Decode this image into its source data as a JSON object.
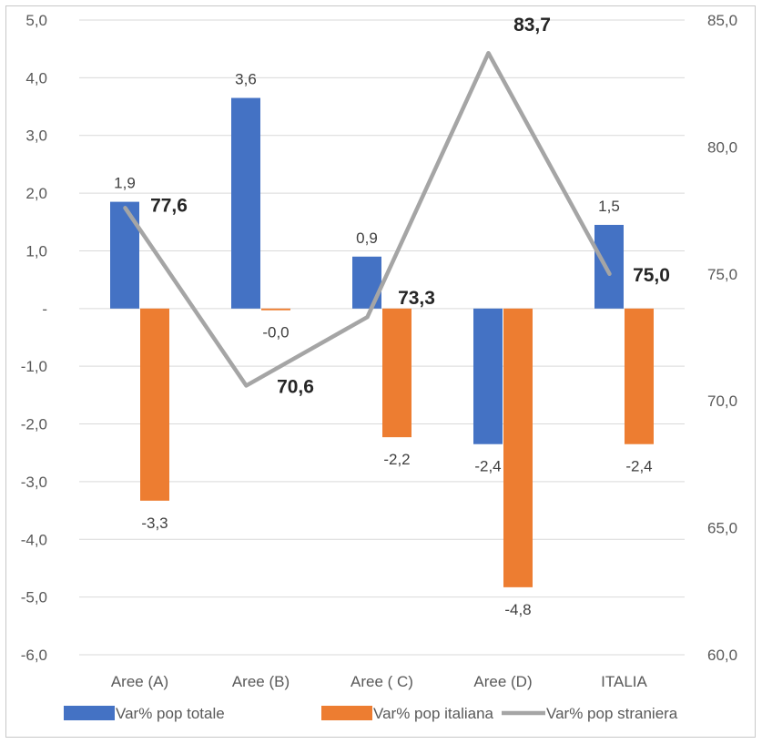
{
  "chart_data": {
    "type": "bar",
    "categories": [
      "Aree (A)",
      "Aree (B)",
      "Aree ( C)",
      "Aree (D)",
      "ITALIA"
    ],
    "series": [
      {
        "name": "Var% pop totale",
        "type": "bar",
        "axis": "left",
        "color": "#4472C4",
        "values": [
          1.85,
          3.65,
          0.9,
          -2.35,
          1.45
        ],
        "labels": [
          "1,9",
          "3,6",
          "0,9",
          "-2,4",
          "1,5"
        ]
      },
      {
        "name": "Var% pop italiana",
        "type": "bar",
        "axis": "left",
        "color": "#ED7D31",
        "values": [
          -3.33,
          -0.03,
          -2.23,
          -4.83,
          -2.35
        ],
        "labels": [
          "-3,3",
          "-0,0",
          "-2,2",
          "-4,8",
          "-2,4"
        ]
      },
      {
        "name": "Var% pop straniera",
        "type": "line",
        "axis": "right",
        "color": "#A5A5A5",
        "values": [
          77.6,
          70.6,
          73.3,
          83.7,
          75.0
        ],
        "labels": [
          "77,6",
          "70,6",
          "73,3",
          "83,7",
          "75,0"
        ]
      }
    ],
    "y_left": {
      "min": -6,
      "max": 5,
      "step": 1,
      "tick_labels": [
        "-6,0",
        "-5,0",
        "-4,0",
        "-3,0",
        "-2,0",
        "-1,0",
        "-",
        "1,0",
        "2,0",
        "3,0",
        "4,0",
        "5,0"
      ]
    },
    "y_right": {
      "min": 60,
      "max": 85,
      "step": 5,
      "tick_labels": [
        "60,0",
        "65,0",
        "70,0",
        "75,0",
        "80,0",
        "85,0"
      ]
    },
    "grid": true,
    "legend_position": "bottom"
  }
}
